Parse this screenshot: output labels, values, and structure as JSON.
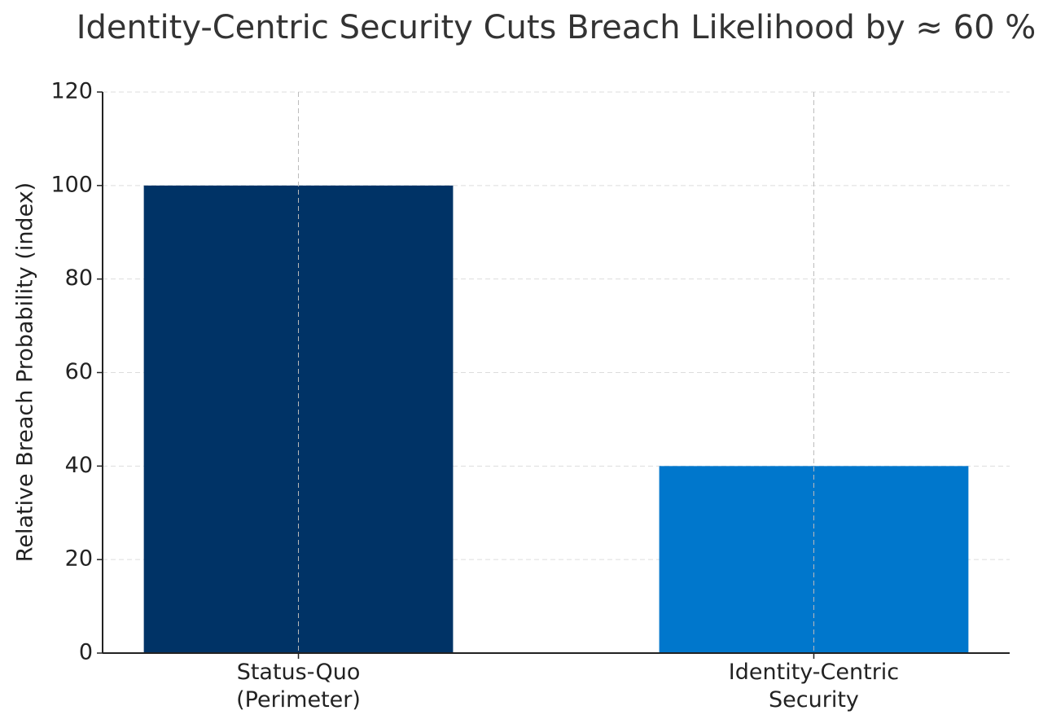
{
  "chart_data": {
    "type": "bar",
    "title": "Identity-Centric Security Cuts Breach Likelihood by ≈ 60 %",
    "y_label": "Relative Breach Probability (index)",
    "categories": [
      "Status-Quo\n(Perimeter)",
      "Identity-Centric\nSecurity"
    ],
    "values": [
      100,
      40
    ],
    "colors": [
      "#003366",
      "#0077cc"
    ],
    "ylim": [
      0,
      120
    ],
    "yticks": [
      0,
      20,
      40,
      60,
      80,
      100,
      120
    ],
    "grid": true
  }
}
